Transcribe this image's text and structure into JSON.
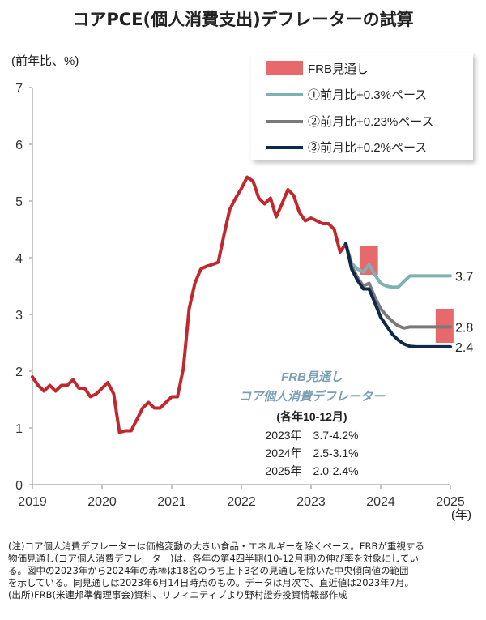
{
  "title": "コアPCE(個人消費支出)デフレーターの試算",
  "chart_data": {
    "type": "line",
    "ylabel": "(前年比、%)",
    "xlabel": "(年)",
    "ylim": [
      0,
      7
    ],
    "yticks": [
      "0",
      "1",
      "2",
      "3",
      "4",
      "5",
      "6",
      "7"
    ],
    "xlim": [
      2019,
      2025
    ],
    "xticks": [
      "2019",
      "2020",
      "2021",
      "2022",
      "2023",
      "2024",
      "2025"
    ],
    "series": [
      {
        "key": "actual",
        "color": "#c0282d",
        "x": [
          2019.0,
          2019.083,
          2019.167,
          2019.25,
          2019.333,
          2019.417,
          2019.5,
          2019.583,
          2019.667,
          2019.75,
          2019.833,
          2019.917,
          2020.0,
          2020.083,
          2020.167,
          2020.25,
          2020.333,
          2020.417,
          2020.5,
          2020.583,
          2020.667,
          2020.75,
          2020.833,
          2020.917,
          2021.0,
          2021.083,
          2021.167,
          2021.25,
          2021.333,
          2021.417,
          2021.5,
          2021.583,
          2021.667,
          2021.75,
          2021.833,
          2021.917,
          2022.0,
          2022.083,
          2022.167,
          2022.25,
          2022.333,
          2022.417,
          2022.5,
          2022.583,
          2022.667,
          2022.75,
          2022.833,
          2022.917,
          2023.0,
          2023.083,
          2023.167,
          2023.25,
          2023.333,
          2023.417,
          2023.5
        ],
        "y": [
          1.9,
          1.75,
          1.65,
          1.75,
          1.65,
          1.75,
          1.75,
          1.85,
          1.7,
          1.7,
          1.55,
          1.6,
          1.7,
          1.8,
          1.6,
          0.92,
          0.95,
          0.95,
          1.15,
          1.35,
          1.45,
          1.35,
          1.35,
          1.45,
          1.55,
          1.55,
          2.05,
          3.1,
          3.55,
          3.8,
          3.85,
          3.88,
          3.92,
          4.4,
          4.85,
          5.05,
          5.22,
          5.42,
          5.35,
          5.05,
          4.95,
          5.05,
          4.72,
          4.95,
          5.2,
          5.1,
          4.8,
          4.65,
          4.7,
          4.65,
          4.6,
          4.6,
          4.5,
          4.1,
          4.25
        ]
      },
      {
        "key": "s1",
        "name": "①前月比+0.3%ペース",
        "color": "#7fb0b3",
        "label": "3.7",
        "x": [
          2023.5,
          2023.583,
          2023.667,
          2023.75,
          2023.833,
          2023.917,
          2024.0,
          2024.083,
          2024.167,
          2024.25,
          2024.333,
          2024.417,
          2024.5,
          2024.583,
          2024.667,
          2024.75,
          2024.833,
          2024.917,
          2025.0
        ],
        "y": [
          4.25,
          3.9,
          3.8,
          3.75,
          3.88,
          3.7,
          3.55,
          3.5,
          3.48,
          3.48,
          3.58,
          3.68,
          3.68,
          3.68,
          3.68,
          3.68,
          3.68,
          3.68,
          3.68
        ]
      },
      {
        "key": "s2",
        "name": "②前月比+0.23%ペース",
        "color": "#7a7a7a",
        "label": "2.8",
        "x": [
          2023.5,
          2023.583,
          2023.667,
          2023.75,
          2023.833,
          2023.917,
          2024.0,
          2024.083,
          2024.167,
          2024.25,
          2024.333,
          2024.417,
          2024.5,
          2024.583,
          2024.667,
          2024.75,
          2024.833,
          2024.917,
          2025.0
        ],
        "y": [
          4.25,
          3.85,
          3.65,
          3.5,
          3.55,
          3.3,
          3.1,
          2.98,
          2.88,
          2.8,
          2.76,
          2.78,
          2.78,
          2.78,
          2.78,
          2.78,
          2.78,
          2.78,
          2.78
        ]
      },
      {
        "key": "s3",
        "name": "③前月比+0.2%ペース",
        "color": "#0d2a4a",
        "label": "2.4",
        "x": [
          2023.5,
          2023.583,
          2023.667,
          2023.75,
          2023.833,
          2023.917,
          2024.0,
          2024.083,
          2024.167,
          2024.25,
          2024.333,
          2024.417,
          2024.5,
          2024.583,
          2024.667,
          2024.75,
          2024.833,
          2024.917,
          2025.0
        ],
        "y": [
          4.25,
          3.8,
          3.6,
          3.45,
          3.45,
          3.2,
          2.95,
          2.8,
          2.65,
          2.55,
          2.48,
          2.44,
          2.43,
          2.43,
          2.43,
          2.43,
          2.43,
          2.43,
          2.43
        ]
      }
    ],
    "frb_bars": [
      {
        "year": "2023",
        "x": 2023.833,
        "low": 3.7,
        "high": 4.2
      },
      {
        "year": "2024",
        "x": 2024.917,
        "low": 2.5,
        "high": 3.1
      }
    ],
    "legend_position": "top-right",
    "legend": {
      "frb": "FRB見通し",
      "frb_color": "#e8696c"
    },
    "annotation": {
      "line1": "FRB見通し",
      "line2": "コア個人消費デフレーター",
      "header": "(各年10-12月)",
      "rows": [
        "2023年　3.7-4.2%",
        "2024年　2.5-3.1%",
        "2025年　2.0-2.4%"
      ],
      "color": "#7a9fb5"
    }
  },
  "notes": [
    "(注)コア個人消費デフレーターは価格変動の大きい食品・エネルギーを除くベース。FRBが重視する",
    "物価見通し(コア個人消費デフレーター)は、各年の第4四半期(10-12月期)の伸び率を対象にしてい",
    "る。図中の2023年から2024年の赤棒は18名のうち上下3名の見通しを除いた中央傾向値の範囲",
    "を示している。同見通しは2023年6月14日時点のもの。データは月次で、直近値は2023年7月。",
    "(出所)FRB(米連邦準備理事会)資料、リフィニティブより野村證券投資情報部作成"
  ]
}
